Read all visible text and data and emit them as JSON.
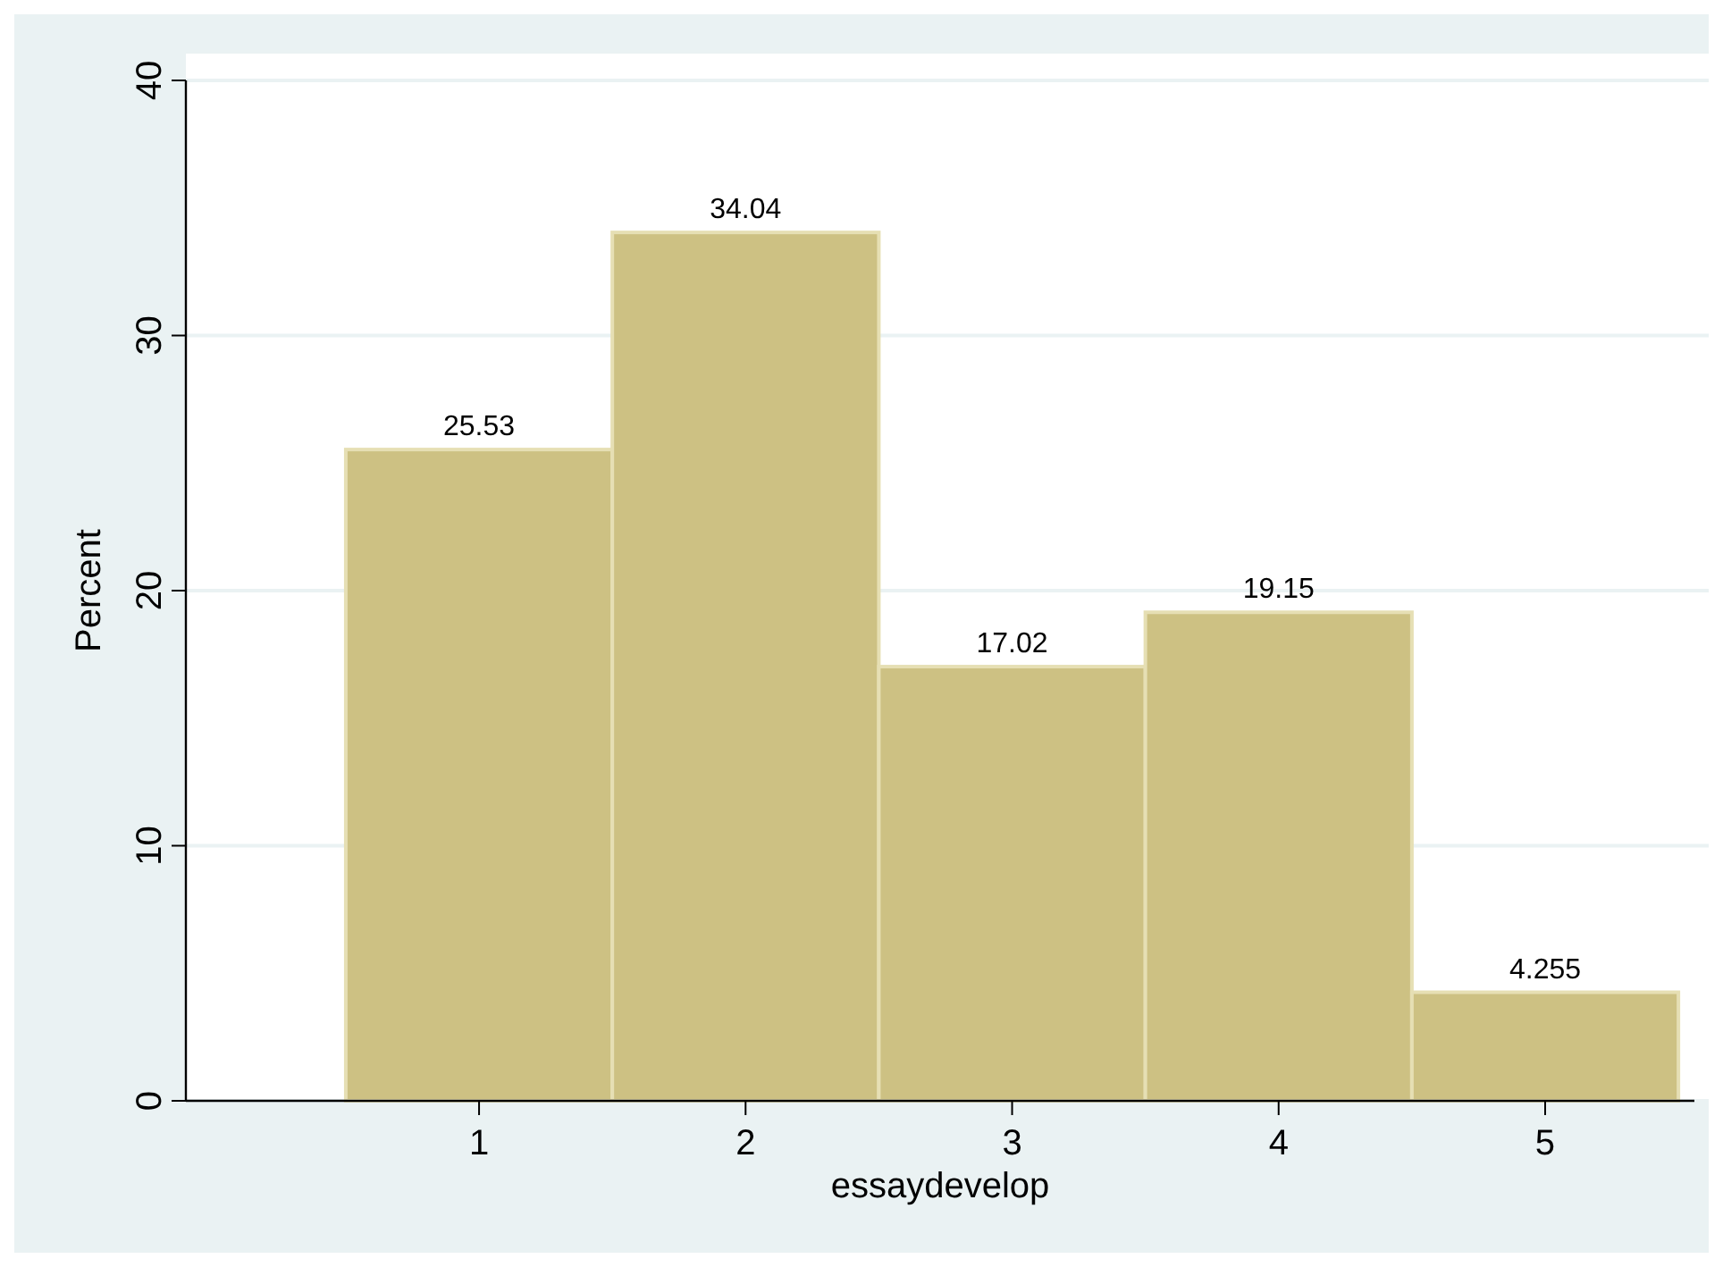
{
  "chart_data": {
    "type": "histogram",
    "xlabel": "essaydevelop",
    "ylabel": "Percent",
    "bins": [
      0.5,
      1.5,
      2.5,
      3.5,
      4.5,
      5.5
    ],
    "values": [
      25.53,
      34.04,
      17.02,
      19.15,
      4.255
    ],
    "color": "#cdc183",
    "data_labels": true,
    "grid": "y",
    "xlim": [
      -0.1,
      5.56
    ],
    "xticks": [
      1,
      2,
      3,
      4,
      5
    ],
    "ylim": [
      0,
      40
    ],
    "yticks": [
      0,
      10,
      20,
      30,
      40
    ]
  }
}
